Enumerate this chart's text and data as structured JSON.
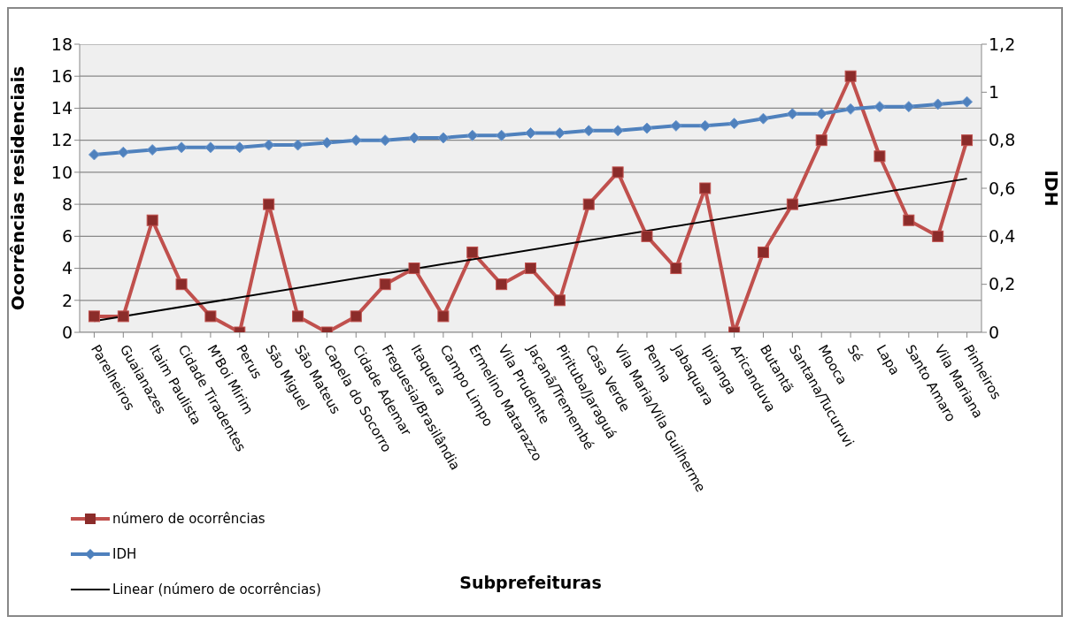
{
  "chart_data": {
    "type": "line",
    "xlabel": "Subprefeituras",
    "ylabel": "Ocorrências residenciais",
    "y2label": "IDH",
    "categories": [
      "Parelheiros",
      "Guaianazes",
      "Itaim Paulista",
      "Cidade Tiradentes",
      "M'Boi Mirim",
      "Perus",
      "São Miguel",
      "São Mateus",
      "Capela do Socorro",
      "Cidade Ademar",
      "Freguesia/Brasilândia",
      "Itaquera",
      "Campo Limpo",
      "Ermelino Matarazzo",
      "Vila Prudente",
      "Jaçanã/Tremembé",
      "Pirituba/Jaraguá",
      "Casa Verde",
      "Vila Maria/Vila Guilherme",
      "Penha",
      "Jabaquara",
      "Ipiranga",
      "Aricanduva",
      "Butantã",
      "Santana/Tucuruvi",
      "Mooca",
      "Sé",
      "Lapa",
      "Santo Amaro",
      "Vila Mariana",
      "Pinheiros"
    ],
    "series": [
      {
        "name": "número de ocorrências",
        "color": "#c0504d",
        "marker": "square",
        "values": [
          1,
          1,
          7,
          3,
          1,
          0,
          8,
          1,
          0,
          1,
          3,
          4,
          1,
          5,
          3,
          4,
          2,
          8,
          10,
          6,
          4,
          9,
          0,
          5,
          8,
          12,
          16,
          11,
          7,
          6,
          12
        ]
      },
      {
        "name": "IDH",
        "color": "#4f81bd",
        "marker": "diamond",
        "axis": "y2",
        "values": [
          0.74,
          0.75,
          0.76,
          0.77,
          0.77,
          0.77,
          0.78,
          0.78,
          0.79,
          0.8,
          0.8,
          0.81,
          0.81,
          0.82,
          0.82,
          0.83,
          0.83,
          0.84,
          0.84,
          0.85,
          0.86,
          0.86,
          0.87,
          0.89,
          0.91,
          0.91,
          0.93,
          0.94,
          0.94,
          0.95,
          0.96
        ]
      },
      {
        "name": "Linear (número de ocorrências)",
        "color": "#000000",
        "marker": "none",
        "x": [
          "Parelheiros",
          "Pinheiros"
        ],
        "values": [
          0.7,
          9.6
        ]
      }
    ],
    "ylim": [
      0,
      18
    ],
    "yticks": [
      0,
      2,
      4,
      6,
      8,
      10,
      12,
      14,
      16,
      18
    ],
    "y2lim": [
      0,
      1.2
    ],
    "y2ticks": [
      {
        "value": 0,
        "label": "0"
      },
      {
        "value": 0.2,
        "label": "0,2"
      },
      {
        "value": 0.4,
        "label": "0,4"
      },
      {
        "value": 0.6,
        "label": "0,6"
      },
      {
        "value": 0.8,
        "label": "0,8"
      },
      {
        "value": 1,
        "label": "1"
      },
      {
        "value": 1.2,
        "label": "1,2"
      }
    ],
    "grid": "y",
    "legend": "bottom left"
  }
}
